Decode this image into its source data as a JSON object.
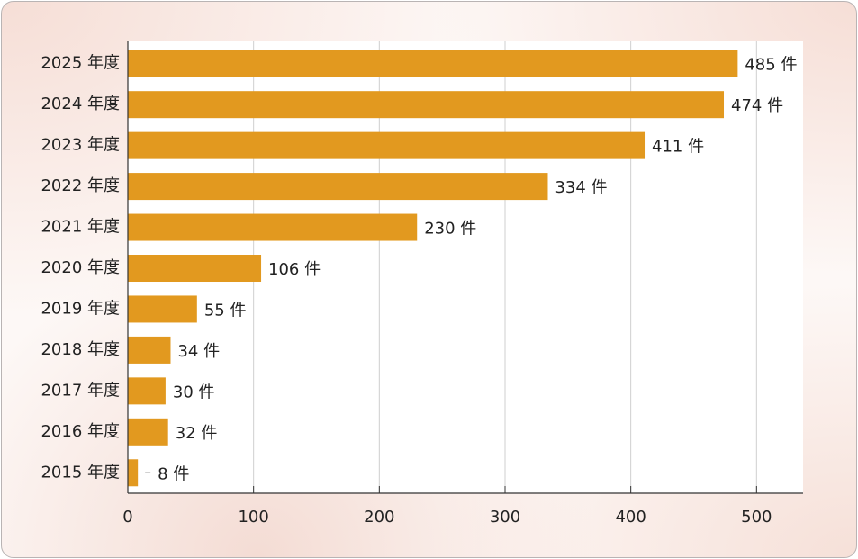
{
  "chart_data": {
    "type": "hbar",
    "categories": [
      "2025 年度",
      "2024 年度",
      "2023 年度",
      "2022 年度",
      "2021 年度",
      "2020 年度",
      "2019 年度",
      "2018 年度",
      "2017 年度",
      "2016 年度",
      "2015 年度"
    ],
    "values": [
      485,
      474,
      411,
      334,
      230,
      106,
      55,
      34,
      30,
      32,
      8
    ],
    "value_labels": [
      "485 件",
      "474 件",
      "411 件",
      "334 件",
      "230 件",
      "106 件",
      "55 件",
      "34 件",
      "30 件",
      "32 件",
      "8 件"
    ],
    "color": "#e2991f",
    "xlim": [
      0,
      537
    ],
    "xticks": [
      0,
      100,
      200,
      300,
      400,
      500
    ],
    "grid": true
  }
}
